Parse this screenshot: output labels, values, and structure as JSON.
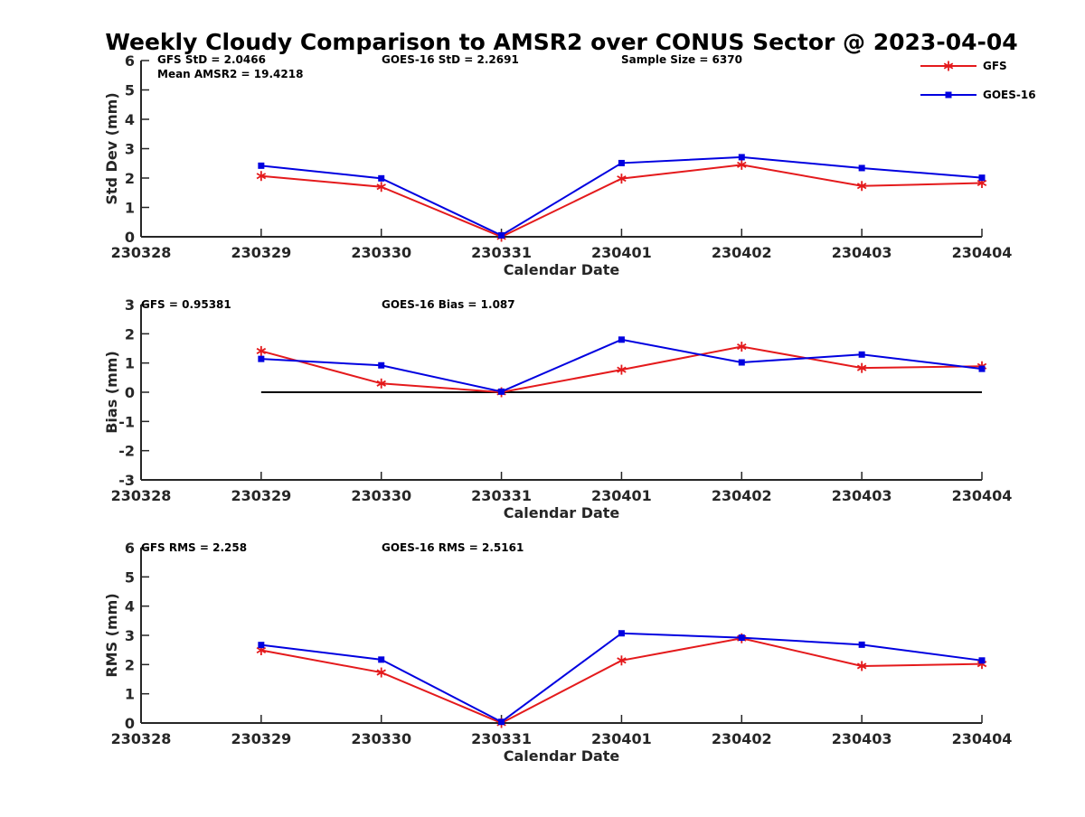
{
  "chart_data": [
    {
      "type": "line",
      "title": "Weekly Cloudy Comparison to AMSR2 over CONUS Sector @ 2023-04-04",
      "xlabel": "Calendar Date",
      "ylabel": "Std Dev (mm)",
      "x_ticks": [
        "230328",
        "230329",
        "230330",
        "230331",
        "230401",
        "230402",
        "230403",
        "230404"
      ],
      "ylim": [
        0,
        6
      ],
      "y_ticks": [
        "0",
        "1",
        "2",
        "3",
        "4",
        "5",
        "6"
      ],
      "zero_line": false,
      "annotations": [
        "GFS StD = 2.0466",
        "GOES-16 StD = 2.2691",
        "Sample Size = 6370",
        "Mean AMSR2 = 19.4218"
      ],
      "x": [
        "230329",
        "230330",
        "230331",
        "230401",
        "230402",
        "230403",
        "230404"
      ],
      "series": [
        {
          "name": "GFS",
          "color": "#e41a1c",
          "marker": "asterisk",
          "values": [
            2.07,
            1.7,
            0.0,
            1.98,
            2.45,
            1.73,
            1.83
          ]
        },
        {
          "name": "GOES-16",
          "color": "#0000e0",
          "marker": "square",
          "values": [
            2.42,
            1.99,
            0.05,
            2.51,
            2.71,
            2.34,
            2.01
          ]
        }
      ],
      "legend_position": "top-right"
    },
    {
      "type": "line",
      "title": "",
      "xlabel": "Calendar Date",
      "ylabel": "Bias (mm)",
      "x_ticks": [
        "230328",
        "230329",
        "230330",
        "230331",
        "230401",
        "230402",
        "230403",
        "230404"
      ],
      "ylim": [
        -3,
        3
      ],
      "y_ticks": [
        "-3",
        "-2",
        "-1",
        "0",
        "1",
        "2",
        "3"
      ],
      "zero_line": true,
      "annotations": [
        "GFS = 0.95381",
        "GOES-16 Bias  = 1.087"
      ],
      "x": [
        "230329",
        "230330",
        "230331",
        "230401",
        "230402",
        "230403",
        "230404"
      ],
      "series": [
        {
          "name": "GFS",
          "color": "#e41a1c",
          "marker": "asterisk",
          "values": [
            1.41,
            0.3,
            0.0,
            0.77,
            1.56,
            0.83,
            0.89
          ]
        },
        {
          "name": "GOES-16",
          "color": "#0000e0",
          "marker": "square",
          "values": [
            1.14,
            0.92,
            0.02,
            1.8,
            1.02,
            1.29,
            0.8
          ]
        }
      ]
    },
    {
      "type": "line",
      "title": "",
      "xlabel": "Calendar Date",
      "ylabel": "RMS (mm)",
      "x_ticks": [
        "230328",
        "230329",
        "230330",
        "230331",
        "230401",
        "230402",
        "230403",
        "230404"
      ],
      "ylim": [
        0,
        6
      ],
      "y_ticks": [
        "0",
        "1",
        "2",
        "3",
        "4",
        "5",
        "6"
      ],
      "zero_line": false,
      "annotations": [
        "GFS RMS = 2.258",
        "GOES-16 RMS = 2.5161"
      ],
      "x": [
        "230329",
        "230330",
        "230331",
        "230401",
        "230402",
        "230403",
        "230404"
      ],
      "series": [
        {
          "name": "GFS",
          "color": "#e41a1c",
          "marker": "asterisk",
          "values": [
            2.49,
            1.73,
            0.0,
            2.14,
            2.9,
            1.95,
            2.02
          ]
        },
        {
          "name": "GOES-16",
          "color": "#0000e0",
          "marker": "square",
          "values": [
            2.67,
            2.17,
            0.04,
            3.07,
            2.92,
            2.68,
            2.14
          ]
        }
      ]
    }
  ]
}
